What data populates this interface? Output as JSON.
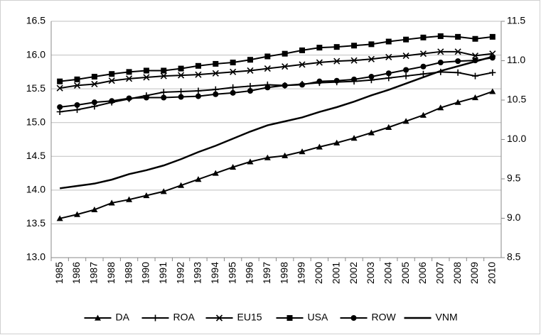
{
  "chart_data": {
    "type": "line",
    "categories": [
      "1985",
      "1986",
      "1987",
      "1988",
      "1989",
      "1990",
      "1991",
      "1992",
      "1993",
      "1994",
      "1995",
      "1996",
      "1997",
      "1998",
      "1999",
      "2000",
      "2001",
      "2002",
      "2003",
      "2004",
      "2005",
      "2006",
      "2007",
      "2008",
      "2009",
      "2010"
    ],
    "ylim": [
      13,
      16.5
    ],
    "yticks": [
      {
        "value": 13,
        "label": "13.0"
      },
      13.5,
      {
        "value": 14,
        "label": "14.0"
      },
      14.5,
      {
        "value": 15,
        "label": "15.0"
      },
      15.5,
      {
        "value": 16,
        "label": "16.0"
      },
      16.5
    ],
    "y2lim": [
      8.5,
      11.5
    ],
    "y2ticks": [
      8.5,
      {
        "value": 9,
        "label": "9.0"
      },
      9.5,
      {
        "value": 10,
        "label": "10.0"
      },
      10.5,
      {
        "value": 11,
        "label": "11.0"
      },
      11.5
    ],
    "grid": true,
    "legend": "bottom",
    "series": [
      {
        "name": "DA",
        "color": "#000000",
        "marker": "triangle",
        "values": [
          13.58,
          13.64,
          13.71,
          13.81,
          13.86,
          13.92,
          13.98,
          14.07,
          14.16,
          14.25,
          14.34,
          14.42,
          14.48,
          14.51,
          14.57,
          14.64,
          14.7,
          14.77,
          14.85,
          14.93,
          15.02,
          15.11,
          15.22,
          15.3,
          15.37,
          15.46
        ]
      },
      {
        "name": "ROA",
        "color": "#000000",
        "marker": "plus",
        "values": [
          15.16,
          15.19,
          15.24,
          15.3,
          15.35,
          15.4,
          15.45,
          15.46,
          15.47,
          15.49,
          15.52,
          15.54,
          15.56,
          15.55,
          15.57,
          15.59,
          15.6,
          15.61,
          15.63,
          15.66,
          15.69,
          15.72,
          15.75,
          15.74,
          15.69,
          15.74
        ]
      },
      {
        "name": "EU15",
        "color": "#000000",
        "marker": "cross",
        "values": [
          15.51,
          15.55,
          15.57,
          15.62,
          15.65,
          15.67,
          15.69,
          15.7,
          15.71,
          15.73,
          15.75,
          15.77,
          15.8,
          15.83,
          15.86,
          15.89,
          15.91,
          15.92,
          15.94,
          15.97,
          15.99,
          16.02,
          16.05,
          16.05,
          15.99,
          16.02
        ]
      },
      {
        "name": "USA",
        "color": "#000000",
        "marker": "square",
        "values": [
          15.61,
          15.64,
          15.68,
          15.72,
          15.75,
          15.77,
          15.77,
          15.8,
          15.84,
          15.87,
          15.89,
          15.93,
          15.98,
          16.02,
          16.07,
          16.11,
          16.12,
          16.14,
          16.16,
          16.2,
          16.23,
          16.26,
          16.28,
          16.27,
          16.24,
          16.27
        ]
      },
      {
        "name": "ROW",
        "color": "#000000",
        "marker": "circle",
        "values": [
          15.23,
          15.26,
          15.3,
          15.32,
          15.36,
          15.37,
          15.37,
          15.38,
          15.39,
          15.42,
          15.44,
          15.47,
          15.52,
          15.55,
          15.56,
          15.61,
          15.62,
          15.64,
          15.68,
          15.73,
          15.78,
          15.83,
          15.89,
          15.91,
          15.92,
          15.96
        ]
      },
      {
        "name": "VNM",
        "color": "#000000",
        "marker": "none",
        "axis": "y2",
        "values": [
          9.38,
          9.41,
          9.44,
          9.49,
          9.56,
          9.61,
          9.67,
          9.75,
          9.84,
          9.92,
          10.01,
          10.1,
          10.18,
          10.23,
          10.28,
          10.35,
          10.41,
          10.48,
          10.56,
          10.63,
          10.71,
          10.79,
          10.87,
          10.93,
          10.99,
          11.05
        ]
      }
    ]
  }
}
